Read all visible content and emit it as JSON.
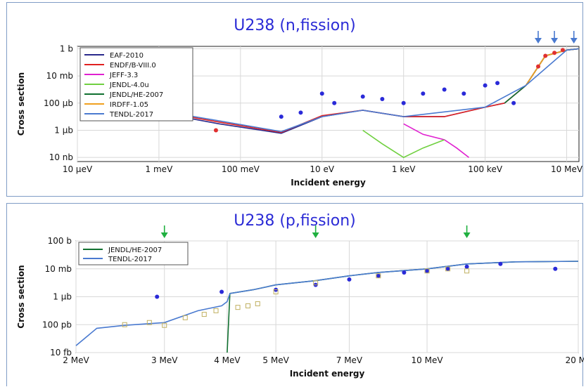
{
  "chart_data": [
    {
      "type": "line",
      "title": "U238 (n,fission)",
      "xlabel": "Incident energy",
      "ylabel": "Cross section",
      "xscale": "log",
      "yscale": "log",
      "x_unit_note": "eV",
      "y_unit_note": "barn",
      "xlim": [
        1e-05,
        20000000.0
      ],
      "ylim": [
        5e-09,
        1.5
      ],
      "x_ticks": [
        {
          "label": "10 µeV",
          "value": 1e-05
        },
        {
          "label": "1 meV",
          "value": 0.001
        },
        {
          "label": "100 meV",
          "value": 0.1
        },
        {
          "label": "10 eV",
          "value": 10
        },
        {
          "label": "1 keV",
          "value": 1000.0
        },
        {
          "label": "100 keV",
          "value": 100000.0
        },
        {
          "label": "10 MeV",
          "value": 10000000.0
        }
      ],
      "y_ticks": [
        {
          "label": "1 b",
          "value": 1
        },
        {
          "label": "10 mb",
          "value": 0.01
        },
        {
          "label": "100 µb",
          "value": 0.0001
        },
        {
          "label": "1 µb",
          "value": 1e-06
        },
        {
          "label": "10 nb",
          "value": 1e-08
        }
      ],
      "grid": true,
      "legend_position": "top-left",
      "series": [
        {
          "name": "EAF-2010",
          "color": "#2a2a8c",
          "x": [
            0.0001,
            0.03,
            1,
            10,
            100,
            1000,
            10000,
            100000,
            300000,
            1000000,
            3000000,
            10000000,
            20000000
          ],
          "y": [
            7e-05,
            3e-06,
            6e-07,
            1e-05,
            3e-05,
            1e-05,
            1e-05,
            5e-05,
            0.0001,
            0.002,
            0.3,
            0.8,
            1.0
          ]
        },
        {
          "name": "ENDF/B-VIII.0",
          "color": "#e02020",
          "x": [
            0.0001,
            0.03,
            1,
            10,
            100,
            1000,
            10000,
            100000,
            300000,
            1000000,
            3000000,
            10000000,
            20000000
          ],
          "y": [
            8e-05,
            4e-06,
            7e-07,
            1.2e-05,
            3e-05,
            1e-05,
            1e-05,
            5e-05,
            0.0001,
            0.002,
            0.3,
            0.8,
            1.0
          ]
        },
        {
          "name": "JEFF-3.3",
          "color": "#e020d0",
          "x": [
            1000,
            3000,
            10000,
            20000,
            40000
          ],
          "y": [
            3e-06,
            5e-07,
            2e-07,
            5e-08,
            1e-08
          ]
        },
        {
          "name": "JENDL-4.0u",
          "color": "#70d040",
          "x": [
            100,
            300,
            1000,
            3000,
            10000
          ],
          "y": [
            1e-06,
            1e-07,
            1e-08,
            5e-08,
            2e-07
          ]
        },
        {
          "name": "JENDL/HE-2007",
          "color": "#107030",
          "x": [
            300000,
            1000000,
            3000000,
            10000000,
            20000000
          ],
          "y": [
            0.0001,
            0.002,
            0.3,
            0.8,
            1.0
          ]
        },
        {
          "name": "IRDFF-1.05",
          "color": "#f0a020",
          "x": [
            1000000,
            3000000,
            10000000,
            20000000
          ],
          "y": [
            0.002,
            0.3,
            0.8,
            1.0
          ]
        },
        {
          "name": "TENDL-2017",
          "color": "#4a7ad0",
          "x": [
            0.0001,
            0.03,
            1,
            10,
            100,
            1000,
            100000,
            1000000,
            10000000,
            20000000
          ],
          "y": [
            9e-05,
            5e-06,
            8e-07,
            1e-05,
            3e-05,
            1e-05,
            5e-05,
            0.002,
            0.8,
            1.0
          ]
        }
      ],
      "markers": [
        {
          "color": "#2a2ad8",
          "x": [
            1,
            3,
            10,
            20,
            100,
            300,
            1000,
            3000,
            10000,
            30000,
            100000,
            200000,
            500000
          ],
          "y": [
            1e-05,
            2e-05,
            0.0005,
            0.0001,
            0.0003,
            0.0002,
            0.0001,
            0.0005,
            0.001,
            0.0005,
            0.002,
            0.003,
            0.0001
          ]
        },
        {
          "color": "#e03030",
          "x": [
            0.025,
            2000000,
            3000000,
            5000000,
            8000000
          ],
          "y": [
            1e-06,
            0.05,
            0.3,
            0.5,
            0.8
          ]
        }
      ],
      "annotations": {
        "arrows_at": [
          2000000,
          5000000,
          15000000
        ],
        "arrow_color": "#4a7ad0"
      }
    },
    {
      "type": "line",
      "title": "U238 (p,fission)",
      "xlabel": "Incident energy",
      "ylabel": "Cross section",
      "xscale": "log",
      "yscale": "log",
      "x_unit_note": "MeV",
      "y_unit_note": "barn",
      "xlim": [
        2,
        20
      ],
      "ylim": [
        1e-14,
        100
      ],
      "x_ticks": [
        {
          "label": "2 MeV",
          "value": 2
        },
        {
          "label": "3 MeV",
          "value": 3
        },
        {
          "label": "4 MeV",
          "value": 4
        },
        {
          "label": "5 MeV",
          "value": 5
        },
        {
          "label": "7 MeV",
          "value": 7
        },
        {
          "label": "10 MeV",
          "value": 10
        },
        {
          "label": "20 Me",
          "value": 20
        }
      ],
      "y_ticks": [
        {
          "label": "100 b",
          "value": 100
        },
        {
          "label": "10 mb",
          "value": 0.01
        },
        {
          "label": "1 µb",
          "value": 1e-06
        },
        {
          "label": "100 pb",
          "value": 1e-10
        },
        {
          "label": "10 fb",
          "value": 1e-14
        }
      ],
      "grid": true,
      "legend_position": "top-left",
      "series": [
        {
          "name": "JENDL/HE-2007",
          "color": "#107030",
          "x": [
            4.0,
            4.05,
            4.5,
            5,
            6,
            7,
            8,
            10,
            12,
            15,
            20
          ],
          "y": [
            1e-14,
            3e-06,
            1e-05,
            5e-05,
            0.0002,
            0.001,
            0.003,
            0.01,
            0.05,
            0.1,
            0.12
          ]
        },
        {
          "name": "TENDL-2017",
          "color": "#4a7ad0",
          "x": [
            2,
            2.2,
            2.5,
            3,
            3.5,
            3.9,
            4.0,
            4.05,
            4.5,
            5,
            6,
            7,
            8,
            10,
            12,
            15,
            20
          ],
          "y": [
            1e-13,
            3e-11,
            8e-11,
            2e-10,
            1e-08,
            5e-08,
            2e-07,
            3e-06,
            1e-05,
            5e-05,
            0.0002,
            0.001,
            0.003,
            0.01,
            0.05,
            0.1,
            0.12
          ]
        }
      ],
      "markers": [
        {
          "color": "#2a2ad8",
          "x": [
            2.9,
            3.9,
            5,
            6,
            7,
            8,
            9,
            10,
            11,
            12,
            14,
            18
          ],
          "y": [
            1e-06,
            5e-06,
            1e-05,
            5e-05,
            0.0003,
            0.001,
            0.003,
            0.005,
            0.01,
            0.02,
            0.05,
            0.01
          ]
        },
        {
          "color": "#c0b060",
          "x": [
            2.5,
            2.8,
            3.0,
            3.3,
            3.6,
            3.8,
            4.2,
            4.4,
            4.6,
            5,
            6,
            8,
            10,
            11,
            12
          ],
          "y": [
            1e-10,
            2e-10,
            8e-11,
            1e-09,
            3e-09,
            1e-08,
            3e-08,
            5e-08,
            1e-07,
            5e-06,
            0.0001,
            0.001,
            0.005,
            0.01,
            0.005
          ]
        }
      ],
      "annotations": {
        "arrows_at": [
          3,
          6,
          12
        ],
        "arrow_color": "#20b040"
      }
    }
  ]
}
